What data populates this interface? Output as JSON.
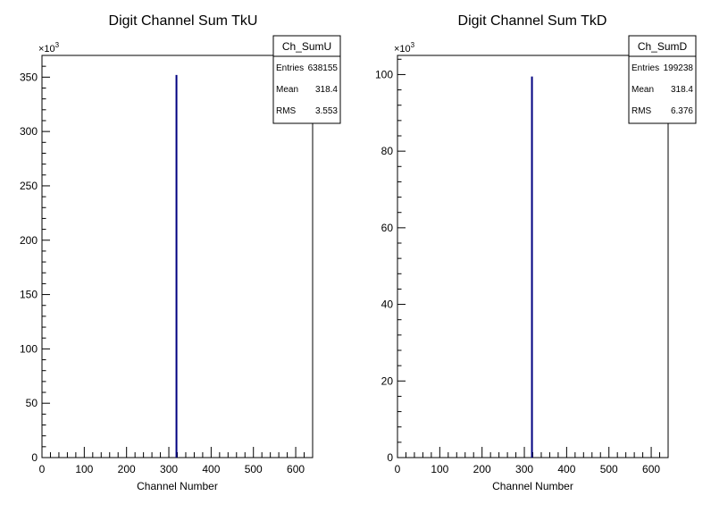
{
  "chart_data": [
    {
      "type": "bar",
      "title": "Digit Channel Sum TkU",
      "xlabel": "Channel Number",
      "ylabel": "",
      "multiplier": "×10",
      "multiplier_exp": "3",
      "xlim": [
        0,
        640
      ],
      "ylim": [
        0,
        370
      ],
      "xticks": [
        0,
        100,
        200,
        300,
        400,
        500,
        600
      ],
      "yticks": [
        0,
        50,
        100,
        150,
        200,
        250,
        300,
        350
      ],
      "series_color": "#000080",
      "bins": [
        {
          "x": 318,
          "y": 352
        }
      ],
      "stats": {
        "name": "Ch_SumU",
        "rows": [
          {
            "label": "Entries",
            "value": "638155"
          },
          {
            "label": "Mean",
            "value": "318.4"
          },
          {
            "label": "RMS",
            "value": "3.553"
          }
        ]
      }
    },
    {
      "type": "bar",
      "title": "Digit Channel Sum TkD",
      "xlabel": "Channel Number",
      "ylabel": "",
      "multiplier": "×10",
      "multiplier_exp": "3",
      "xlim": [
        0,
        640
      ],
      "ylim": [
        0,
        105
      ],
      "xticks": [
        0,
        100,
        200,
        300,
        400,
        500,
        600
      ],
      "yticks": [
        0,
        20,
        40,
        60,
        80,
        100
      ],
      "series_color": "#000080",
      "bins": [
        {
          "x": 318,
          "y": 99.5
        }
      ],
      "stats": {
        "name": "Ch_SumD",
        "rows": [
          {
            "label": "Entries",
            "value": "199238"
          },
          {
            "label": "Mean",
            "value": "318.4"
          },
          {
            "label": "RMS",
            "value": "6.376"
          }
        ]
      }
    }
  ]
}
